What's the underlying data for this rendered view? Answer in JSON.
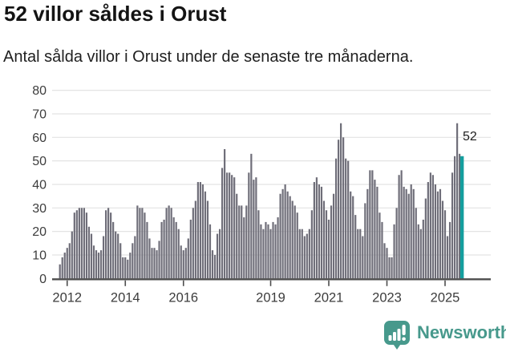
{
  "header": {
    "title": "52 villor såldes i Orust",
    "subtitle": "Antal sålda villor i Orust under de senaste tre månaderna."
  },
  "chart_data": {
    "type": "bar",
    "title": "52 villor såldes i Orust",
    "subtitle": "Antal sålda villor i Orust under de senaste tre månaderna.",
    "period": "monthly",
    "start_month": "2011-10",
    "ylim": [
      0,
      80
    ],
    "grid": "horizontal",
    "y_ticks": [
      0,
      10,
      20,
      30,
      40,
      50,
      60,
      70,
      80
    ],
    "x_ticks": [
      {
        "label": "2012",
        "month_index": 3
      },
      {
        "label": "2014",
        "month_index": 27
      },
      {
        "label": "2016",
        "month_index": 51
      },
      {
        "label": "2019",
        "month_index": 87
      },
      {
        "label": "2021",
        "month_index": 111
      },
      {
        "label": "2023",
        "month_index": 135
      },
      {
        "label": "2025",
        "month_index": 159
      }
    ],
    "bar_color": "#6f6e79",
    "values": [
      6,
      9,
      11,
      13,
      15,
      20,
      28,
      29,
      30,
      30,
      30,
      28,
      22,
      19,
      14,
      12,
      11,
      12,
      18,
      29,
      30,
      28,
      24,
      20,
      19,
      15,
      9,
      9,
      8,
      11,
      15,
      18,
      31,
      30,
      30,
      28,
      24,
      17,
      13,
      13,
      12,
      16,
      24,
      25,
      30,
      31,
      30,
      26,
      24,
      21,
      14,
      12,
      13,
      17,
      25,
      30,
      33,
      41,
      41,
      40,
      37,
      33,
      23,
      12,
      10,
      19,
      21,
      47,
      55,
      45,
      45,
      44,
      43,
      36,
      31,
      31,
      26,
      31,
      45,
      53,
      42,
      43,
      29,
      23,
      21,
      24,
      23,
      21,
      24,
      23,
      26,
      36,
      38,
      40,
      37,
      35,
      33,
      31,
      28,
      21,
      21,
      18,
      19,
      21,
      29,
      41,
      43,
      40,
      39,
      33,
      29,
      25,
      31,
      36,
      51,
      59,
      66,
      60,
      51,
      50,
      37,
      35,
      27,
      21,
      21,
      18,
      32,
      38,
      46,
      46,
      42,
      39,
      28,
      24,
      15,
      13,
      9,
      9,
      23,
      30,
      44,
      46,
      39,
      38,
      36,
      40,
      38,
      30,
      23,
      21,
      25,
      34,
      41,
      45,
      44,
      40,
      37,
      38,
      33,
      29,
      18,
      24,
      45,
      52,
      66,
      53,
      52
    ],
    "highlight": {
      "index": 166,
      "value": 52,
      "color": "#149e9e",
      "label": "52"
    }
  },
  "footer": {
    "brand": "Newsworthy",
    "logo_color": "#47998c",
    "logo_icon": "bar-chart-pin-badge"
  }
}
